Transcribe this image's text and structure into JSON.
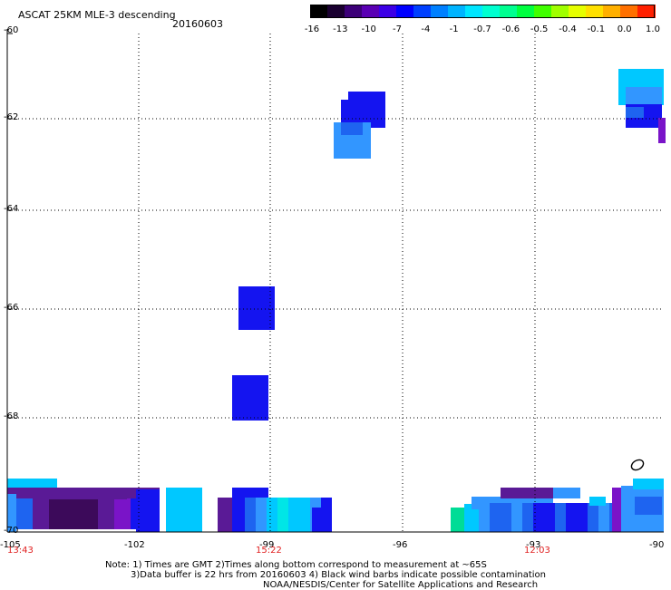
{
  "header": {
    "title": "ASCAT 25KM MLE-3 descending",
    "date": "20160603"
  },
  "colorbar": {
    "labels": [
      "-16",
      "-13",
      "-10",
      "-7",
      "-4",
      "-1",
      "-0.7",
      "-0.6",
      "-0.5",
      "-0.4",
      "-0.1",
      "0.0",
      "1.0"
    ],
    "colors": [
      "#000000",
      "#1a0030",
      "#3c0078",
      "#5a00b4",
      "#3c00e6",
      "#0000ff",
      "#0040ff",
      "#0080ff",
      "#00b4ff",
      "#00e6ff",
      "#00ffd0",
      "#00ff90",
      "#00ff40",
      "#40ff00",
      "#a0ff00",
      "#e6ff00",
      "#ffe000",
      "#ffb000",
      "#ff7000",
      "#ff2000"
    ]
  },
  "axes": {
    "y_ticks": [
      "-60",
      "-62",
      "-64",
      "-66",
      "-68",
      "-70"
    ],
    "x_ticks": [
      "-105",
      "-102",
      "-99",
      "-96",
      "-93",
      "-90"
    ],
    "times": [
      "13:43",
      "15:22",
      "12:03"
    ]
  },
  "notes": {
    "line1": "Note: 1) Times are GMT 2)Times along bottom correspond to measurement at ~65S",
    "line2": "3)Data buffer is 22 hrs from 20160603 4) Black wind barbs indicate possible contamination",
    "line3": "NOAA/NESDIS/Center for Satellite Applications and Research"
  },
  "palette": {
    "purple_dark": "#3c0a5a",
    "purple": "#5a1a96",
    "blue": "#1414f0",
    "blue_mid": "#1e64f0",
    "blue_light": "#3296ff",
    "cyan": "#00c8ff",
    "aqua": "#00e6e6",
    "green": "#00dc96",
    "violet": "#7a14c8"
  }
}
